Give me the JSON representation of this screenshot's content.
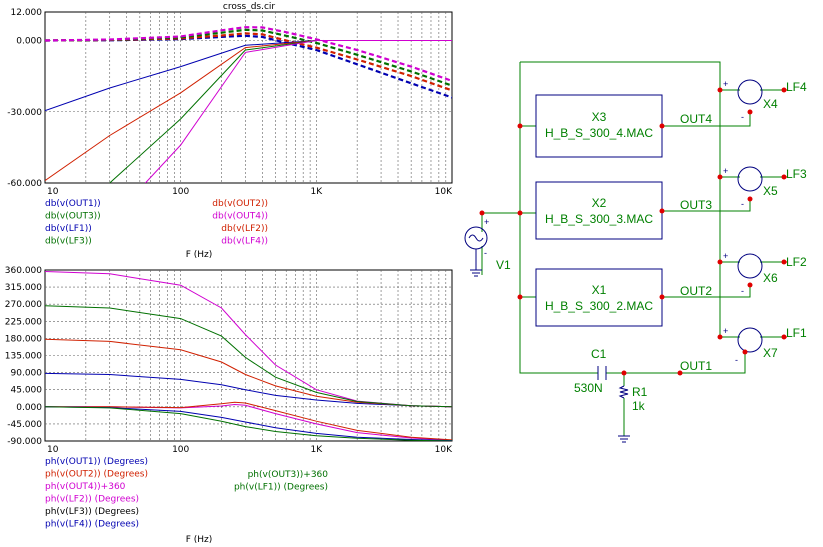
{
  "window": {
    "title": "cross_ds.cir"
  },
  "colors": {
    "OUT1": "#0000b0",
    "OUT2": "#d02000",
    "OUT3": "#007000",
    "OUT4": "#d000d0",
    "LF1": "#0000b0",
    "LF2": "#d02000",
    "LF3": "#007000",
    "LF4": "#d000d0",
    "axis": "#000000",
    "grid": "#606060",
    "wire": "#008000",
    "node": "#e00000",
    "schematic_text": "#008000",
    "label_text": "#0000a0"
  },
  "chart_data": [
    {
      "type": "line",
      "title": "cross_ds.cir",
      "xscale": "log",
      "xlim": [
        10,
        10000
      ],
      "ylim": [
        -60,
        12
      ],
      "xlabel": "F (Hz)",
      "xticks": [
        10,
        100,
        1000,
        10000
      ],
      "xtick_labels": [
        "10",
        "100",
        "1K",
        "10K"
      ],
      "yticks": [
        12,
        0,
        -30,
        -60
      ],
      "ytick_labels": [
        "12.000",
        "0.000",
        "-30.000",
        "-60.000"
      ],
      "grid": true,
      "series": [
        {
          "name": "db(v(OUT1))",
          "key": "OUT1",
          "dash": true,
          "x": [
            10,
            30,
            100,
            200,
            300,
            400,
            600,
            1000,
            2000,
            5000,
            10000
          ],
          "y": [
            0,
            0.1,
            0.6,
            1.5,
            2.0,
            1.5,
            -1,
            -4,
            -10,
            -18,
            -24
          ]
        },
        {
          "name": "db(v(OUT2))",
          "key": "OUT2",
          "dash": true,
          "x": [
            10,
            30,
            100,
            200,
            300,
            400,
            600,
            1000,
            2000,
            5000,
            10000
          ],
          "y": [
            0,
            0.2,
            0.9,
            2.1,
            3.0,
            2.6,
            0,
            -3,
            -8,
            -15,
            -21
          ]
        },
        {
          "name": "db(v(OUT3))",
          "key": "OUT3",
          "dash": true,
          "x": [
            10,
            30,
            100,
            200,
            300,
            400,
            600,
            1000,
            2000,
            5000,
            10000
          ],
          "y": [
            0,
            0.3,
            1.3,
            3.3,
            4.5,
            4.2,
            2,
            -1,
            -6,
            -13,
            -19
          ]
        },
        {
          "name": "db(v(OUT4))",
          "key": "OUT4",
          "dash": true,
          "x": [
            10,
            30,
            100,
            200,
            300,
            400,
            600,
            1000,
            2000,
            5000,
            10000
          ],
          "y": [
            0,
            0.4,
            1.7,
            4.3,
            5.6,
            5.5,
            3.5,
            0.5,
            -4,
            -11,
            -17
          ]
        },
        {
          "name": "db(v(LF1))",
          "key": "LF1",
          "dash": false,
          "x": [
            10,
            30,
            100,
            300,
            1000,
            3000,
            10000
          ],
          "y": [
            -29.5,
            -20,
            -11,
            -2,
            0,
            0,
            0
          ]
        },
        {
          "name": "db(v(LF2))",
          "key": "LF2",
          "dash": false,
          "x": [
            10,
            30,
            100,
            300,
            1000,
            3000,
            10000
          ],
          "y": [
            -59,
            -40,
            -22,
            -3,
            0,
            0,
            0
          ]
        },
        {
          "name": "db(v(LF3))",
          "key": "LF3",
          "dash": false,
          "x": [
            30,
            100,
            300,
            1000,
            3000,
            10000
          ],
          "y": [
            -60,
            -33,
            -4,
            0,
            0,
            0
          ]
        },
        {
          "name": "db(v(LF4))",
          "key": "LF4",
          "dash": false,
          "x": [
            55,
            100,
            300,
            1000,
            3000,
            10000
          ],
          "y": [
            -60,
            -44,
            -5,
            0,
            0,
            0
          ]
        }
      ]
    },
    {
      "type": "line",
      "xscale": "log",
      "xlim": [
        10,
        10000
      ],
      "ylim": [
        -90,
        360
      ],
      "xlabel": "F (Hz)",
      "xticks": [
        10,
        100,
        1000,
        10000
      ],
      "xtick_labels": [
        "10",
        "100",
        "1K",
        "10K"
      ],
      "yticks": [
        360,
        315,
        270,
        225,
        180,
        135,
        90,
        45,
        0,
        -45,
        -90
      ],
      "ytick_labels": [
        "360.000",
        "315.000",
        "270.000",
        "225.000",
        "180.000",
        "135.000",
        "90.000",
        "45.000",
        "0.000",
        "-45.000",
        "-90.000"
      ],
      "grid": true,
      "series": [
        {
          "name": "ph(v(OUT1)) (Degrees)",
          "key": "OUT1",
          "x": [
            10,
            30,
            100,
            200,
            300,
            500,
            1000,
            2000,
            5000,
            10000
          ],
          "y": [
            88,
            85,
            72,
            58,
            45,
            30,
            18,
            9,
            3,
            0
          ]
        },
        {
          "name": "ph(v(OUT2)) (Degrees)",
          "key": "OUT2",
          "x": [
            10,
            30,
            100,
            200,
            300,
            500,
            1000,
            2000,
            5000,
            10000
          ],
          "y": [
            178,
            172,
            150,
            118,
            85,
            55,
            28,
            12,
            3,
            0
          ]
        },
        {
          "name": "ph(v(OUT4))+360",
          "key": "OUT4",
          "x": [
            10,
            30,
            100,
            200,
            300,
            500,
            1000,
            2000,
            5000,
            10000
          ],
          "y": [
            356,
            350,
            320,
            260,
            190,
            110,
            45,
            15,
            3,
            0
          ]
        },
        {
          "name": "ph(v(LF2)) (Degrees)",
          "key": "LF4",
          "x": [
            10,
            30,
            100,
            200,
            250,
            300,
            500,
            1000,
            2000,
            5000,
            10000
          ],
          "y": [
            0,
            0,
            -3,
            2,
            6,
            4,
            -18,
            -45,
            -68,
            -82,
            -88
          ]
        },
        {
          "name": "ph(v(LF3)) (Degrees)",
          "key": "LF2",
          "x": [
            10,
            30,
            100,
            200,
            250,
            300,
            500,
            1000,
            2000,
            5000,
            10000
          ],
          "y": [
            0,
            0,
            -2,
            8,
            12,
            10,
            -10,
            -38,
            -62,
            -80,
            -87
          ]
        },
        {
          "name": "ph(v(LF4)) (Degrees)",
          "key": "LF1",
          "x": [
            10,
            30,
            100,
            200,
            300,
            500,
            1000,
            2000,
            5000,
            10000
          ],
          "y": [
            0,
            -2,
            -12,
            -28,
            -40,
            -55,
            -70,
            -80,
            -86,
            -89
          ]
        },
        {
          "name": "ph(v(OUT3))+360",
          "key": "OUT3",
          "x": [
            10,
            30,
            100,
            200,
            300,
            500,
            1000,
            2000,
            5000,
            10000
          ],
          "y": [
            266,
            260,
            232,
            186,
            130,
            78,
            38,
            14,
            3,
            0
          ]
        },
        {
          "name": "ph(v(LF1)) (Degrees)",
          "key": "LF3",
          "x": [
            10,
            30,
            100,
            200,
            300,
            500,
            1000,
            2000,
            5000,
            10000
          ],
          "y": [
            0,
            -3,
            -18,
            -38,
            -52,
            -65,
            -76,
            -83,
            -88,
            -90
          ]
        }
      ]
    }
  ],
  "legend_top": {
    "left": [
      {
        "text": "db(v(OUT1))",
        "key": "OUT1"
      },
      {
        "text": "db(v(OUT3))",
        "key": "OUT3"
      },
      {
        "text": "db(v(LF1))",
        "key": "LF1"
      },
      {
        "text": "db(v(LF3))",
        "key": "LF3"
      }
    ],
    "right": [
      {
        "text": "db(v(OUT2))",
        "key": "OUT2"
      },
      {
        "text": "db(v(OUT4))",
        "key": "OUT4"
      },
      {
        "text": "db(v(LF2))",
        "key": "LF2"
      },
      {
        "text": "db(v(LF4))",
        "key": "LF4"
      }
    ]
  },
  "legend_bottom": {
    "left": [
      {
        "text": "ph(v(OUT1)) (Degrees)",
        "color": "#0000b0"
      },
      {
        "text": "ph(v(OUT2)) (Degrees)",
        "color": "#d02000"
      },
      {
        "text": "ph(v(OUT4))+360",
        "color": "#d000d0"
      },
      {
        "text": "ph(v(LF2)) (Degrees)",
        "color": "#d000d0"
      },
      {
        "text": "ph(v(LF3)) (Degrees)",
        "color": "#000000"
      },
      {
        "text": "ph(v(LF4)) (Degrees)",
        "color": "#0000b0"
      }
    ],
    "right": [
      {
        "text": "ph(v(OUT3))+360",
        "color": "#007000"
      },
      {
        "text": "ph(v(LF1)) (Degrees)",
        "color": "#007000"
      }
    ]
  },
  "schematic": {
    "blocks": [
      {
        "ref": "X3",
        "model": "H_B_S_300_4.MAC",
        "out": "OUT4",
        "sum": "X4",
        "lf": "LF4"
      },
      {
        "ref": "X2",
        "model": "H_B_S_300_3.MAC",
        "out": "OUT3",
        "sum": "X5",
        "lf": "LF3"
      },
      {
        "ref": "X1",
        "model": "H_B_S_300_2.MAC",
        "out": "OUT2",
        "sum": "X6",
        "lf": "LF2"
      }
    ],
    "source": "V1",
    "plus": "+",
    "minus": "-",
    "capacitor": {
      "ref": "C1",
      "value": "530N"
    },
    "resistor": {
      "ref": "R1",
      "value": "1k"
    },
    "out1": "OUT1",
    "sum_bottom": "X7",
    "lf_bottom": "LF1"
  }
}
